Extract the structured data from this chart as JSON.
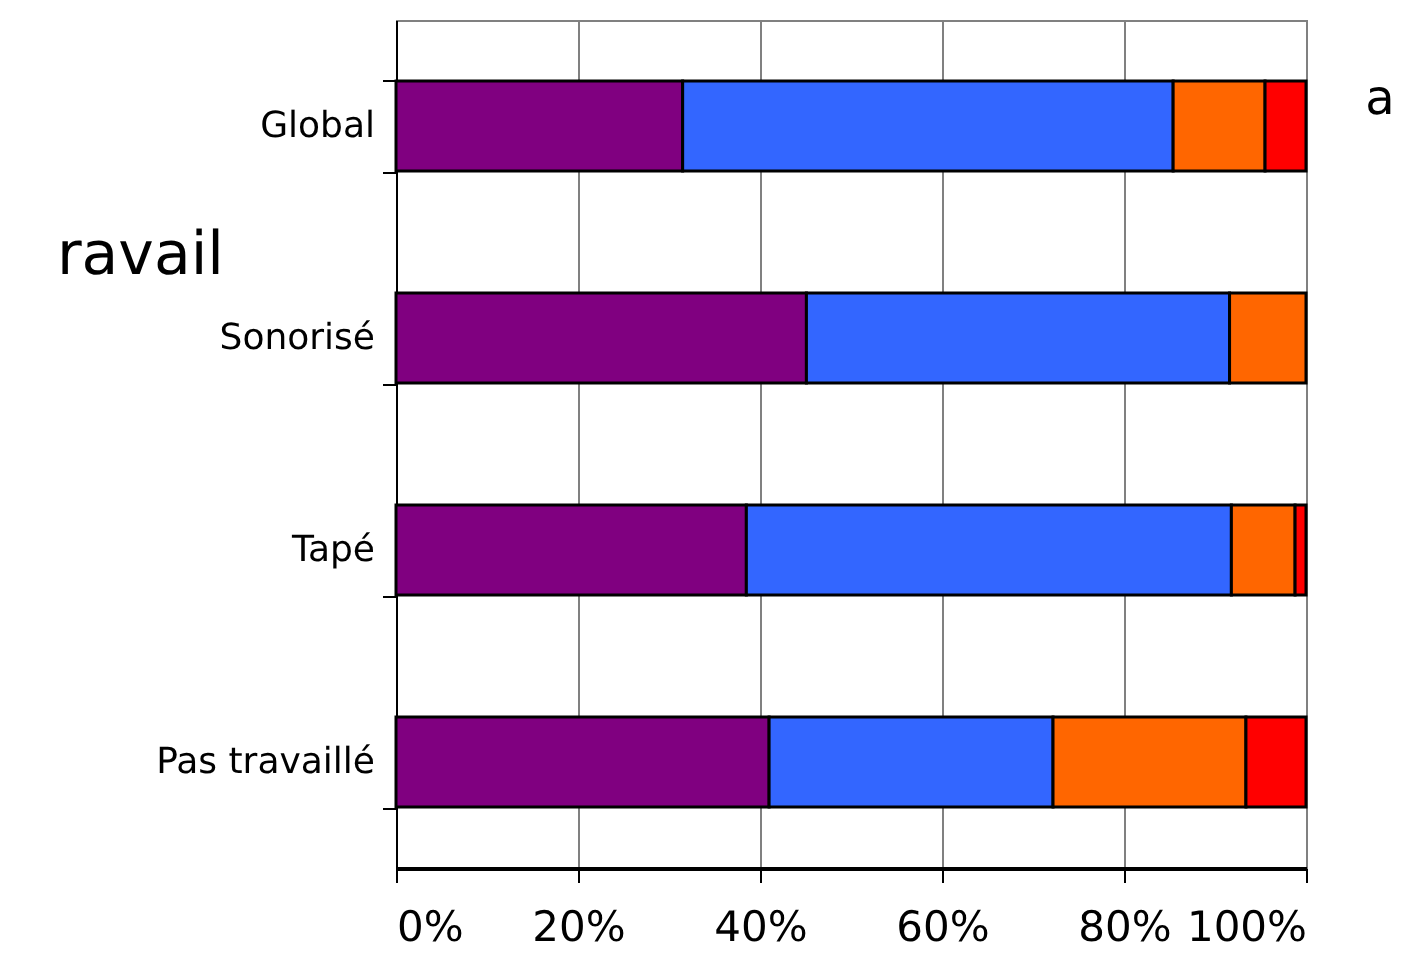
{
  "chart_data": {
    "type": "bar",
    "orientation": "horizontal",
    "stacked": true,
    "categories": [
      "Global",
      "Sonorisé",
      "Tapé",
      "Pas travaillé"
    ],
    "series": [
      {
        "color": "#800080",
        "values": [
          31.5,
          45.1,
          38.5,
          41.0
        ]
      },
      {
        "color": "#3366ff",
        "values": [
          53.9,
          46.5,
          53.3,
          31.2
        ]
      },
      {
        "color": "#ff6600",
        "values": [
          10.1,
          8.4,
          7.0,
          21.2
        ]
      },
      {
        "color": "#ff0000",
        "values": [
          4.5,
          null,
          1.2,
          6.6
        ]
      }
    ],
    "xlim": [
      0,
      100
    ],
    "xticks": [
      {
        "value": 0,
        "label": "0%"
      },
      {
        "value": 20,
        "label": "20%"
      },
      {
        "value": 40,
        "label": "40%"
      },
      {
        "value": 60,
        "label": "60%"
      },
      {
        "value": 80,
        "label": "80%"
      },
      {
        "value": 100,
        "label": "100%"
      }
    ],
    "grid": "x",
    "annotations": [
      "ravail",
      "a"
    ]
  }
}
